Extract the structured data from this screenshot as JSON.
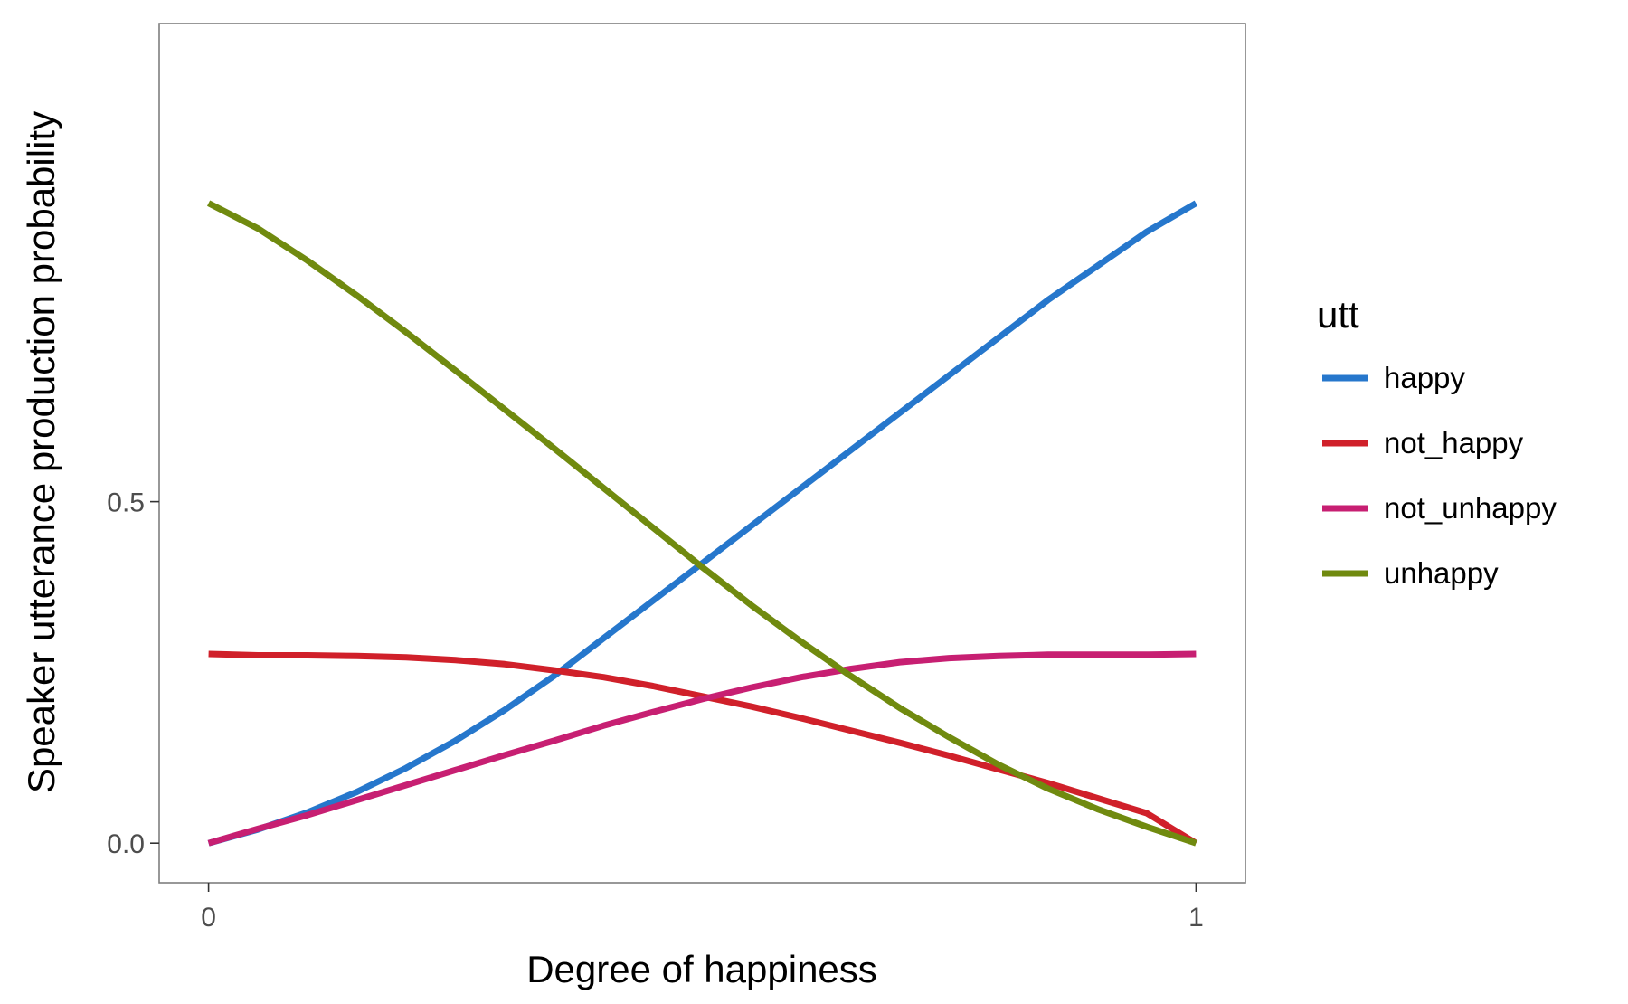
{
  "chart_data": {
    "type": "line",
    "xlabel": "Degree of happiness",
    "ylabel": "Speaker utterance production probability",
    "xlim": [
      -0.05,
      1.05
    ],
    "ylim": [
      -0.058,
      1.2
    ],
    "x_ticks": [
      0,
      1
    ],
    "x_tick_labels": [
      "0",
      "1"
    ],
    "y_ticks": [
      0.0,
      0.5
    ],
    "y_tick_labels": [
      "0.0",
      "0.5"
    ],
    "grid": false,
    "legend_title": "utt",
    "legend_position": "right",
    "x": [
      0,
      0.05,
      0.1,
      0.15,
      0.2,
      0.25,
      0.3,
      0.35,
      0.4,
      0.45,
      0.5,
      0.55,
      0.6,
      0.65,
      0.7,
      0.75,
      0.8,
      0.85,
      0.9,
      0.95,
      1
    ],
    "series": [
      {
        "name": "happy",
        "color": "#2677cc",
        "values": [
          0.0,
          0.02,
          0.045,
          0.075,
          0.11,
          0.15,
          0.195,
          0.245,
          0.3,
          0.355,
          0.41,
          0.465,
          0.52,
          0.575,
          0.63,
          0.685,
          0.74,
          0.795,
          0.845,
          0.895,
          0.937
        ]
      },
      {
        "name": "not_happy",
        "color": "#d0202a",
        "values": [
          0.277,
          0.275,
          0.275,
          0.274,
          0.272,
          0.268,
          0.262,
          0.253,
          0.243,
          0.23,
          0.215,
          0.2,
          0.183,
          0.165,
          0.147,
          0.128,
          0.108,
          0.088,
          0.066,
          0.044,
          0.0
        ]
      },
      {
        "name": "not_unhappy",
        "color": "#c71f72",
        "values": [
          0.0,
          0.021,
          0.041,
          0.063,
          0.085,
          0.107,
          0.129,
          0.15,
          0.172,
          0.192,
          0.211,
          0.228,
          0.243,
          0.255,
          0.265,
          0.271,
          0.274,
          0.276,
          0.276,
          0.276,
          0.277
        ]
      },
      {
        "name": "unhappy",
        "color": "#708a0f",
        "values": [
          0.937,
          0.9,
          0.853,
          0.802,
          0.748,
          0.692,
          0.635,
          0.578,
          0.52,
          0.462,
          0.404,
          0.348,
          0.295,
          0.245,
          0.198,
          0.155,
          0.115,
          0.08,
          0.05,
          0.024,
          0.0
        ]
      }
    ]
  }
}
